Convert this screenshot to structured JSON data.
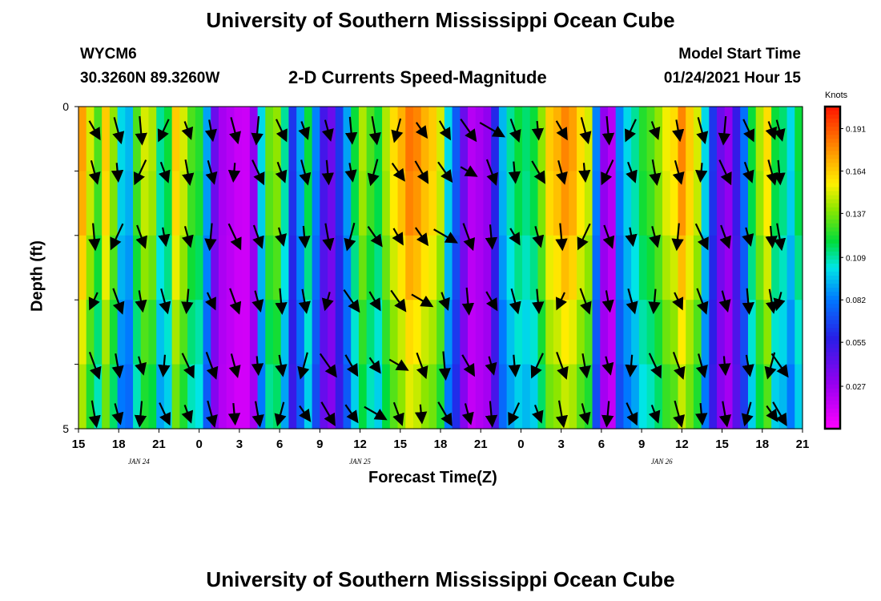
{
  "header": {
    "title": "University of Southern Mississippi Ocean Cube",
    "station_id": "WYCM6",
    "coords": "30.3260N 89.3260W",
    "subtitle": "2-D Currents Speed-Magnitude",
    "model_label": "Model Start Time",
    "model_time": "01/24/2021 Hour 15"
  },
  "footer": {
    "title": "University of Southern Mississippi Ocean Cube"
  },
  "chart_data": {
    "type": "heatmap",
    "title": "2-D Currents Speed-Magnitude",
    "xlabel": "Forecast Time(Z)",
    "ylabel": "Depth (ft)",
    "x_ticks": [
      "15",
      "18",
      "21",
      "0",
      "3",
      "6",
      "9",
      "12",
      "15",
      "18",
      "21",
      "0",
      "3",
      "6",
      "9",
      "12",
      "15",
      "18",
      "21"
    ],
    "x_tick_hours": [
      0,
      3,
      6,
      9,
      12,
      15,
      18,
      21,
      24,
      27,
      30,
      33,
      36,
      39,
      42,
      45,
      48,
      51,
      54
    ],
    "x_range_hours": [
      0,
      54
    ],
    "date_labels": [
      {
        "label": "JAN 24",
        "hour": 4.5
      },
      {
        "label": "JAN 25",
        "hour": 21
      },
      {
        "label": "JAN 26",
        "hour": 43.5
      }
    ],
    "y_ticks": [
      "0",
      "5"
    ],
    "y_range": [
      0,
      5
    ],
    "depth_rows": 5,
    "colorbar": {
      "unit": "Knots",
      "range": [
        0.0,
        0.205
      ],
      "ticks": [
        "0.191",
        "0.164",
        "0.137",
        "0.109",
        "0.082",
        "0.055",
        "0.027"
      ],
      "tick_values": [
        0.191,
        0.164,
        0.137,
        0.109,
        0.082,
        0.055,
        0.027
      ]
    },
    "speed_by_hour": [
      0.17,
      0.15,
      0.13,
      0.16,
      0.14,
      0.1,
      0.09,
      0.13,
      0.15,
      0.14,
      0.11,
      0.12,
      0.16,
      0.15,
      0.13,
      0.12,
      0.09,
      0.04,
      0.02,
      0.02,
      0.015,
      0.01,
      0.03,
      0.1,
      0.13,
      0.14,
      0.11,
      0.06,
      0.09,
      0.12,
      0.08,
      0.05,
      0.04,
      0.06,
      0.09,
      0.12,
      0.14,
      0.13,
      0.12,
      0.14,
      0.16,
      0.17,
      0.18,
      0.18,
      0.17,
      0.16,
      0.15,
      0.1,
      0.07,
      0.04,
      0.02,
      0.02,
      0.03,
      0.06,
      0.09,
      0.11,
      0.12,
      0.11,
      0.12,
      0.14,
      0.16,
      0.17,
      0.18,
      0.17,
      0.16,
      0.15,
      0.08,
      0.03,
      0.02,
      0.08,
      0.1,
      0.11,
      0.12,
      0.13,
      0.14,
      0.15,
      0.16,
      0.18,
      0.16,
      0.15,
      0.1,
      0.06,
      0.04,
      0.03,
      0.05,
      0.08,
      0.12,
      0.14,
      0.16,
      0.12,
      0.11,
      0.1,
      0.12
    ],
    "depth_factors": [
      1.0,
      0.98,
      0.93,
      0.87,
      0.82,
      0.78
    ],
    "arrow_hours": [
      2,
      5,
      8,
      11,
      14,
      17,
      20,
      23,
      26,
      29,
      32,
      35,
      38,
      41,
      44,
      47,
      50,
      53,
      56,
      59,
      62,
      65,
      68,
      71,
      74,
      77,
      80,
      83,
      86,
      89,
      90
    ],
    "arrow_angles_deg": [
      -30,
      -15,
      -5,
      25,
      -20,
      -10,
      -15,
      5,
      -25,
      -20,
      -15,
      -5,
      -10,
      15,
      -35,
      -30,
      -35,
      -60,
      -20,
      -5
    ],
    "arrow_lengths": [
      0.7,
      0.8,
      0.9,
      0.6,
      0.95,
      0.9,
      0.8,
      0.7,
      0.6,
      0.85
    ]
  }
}
